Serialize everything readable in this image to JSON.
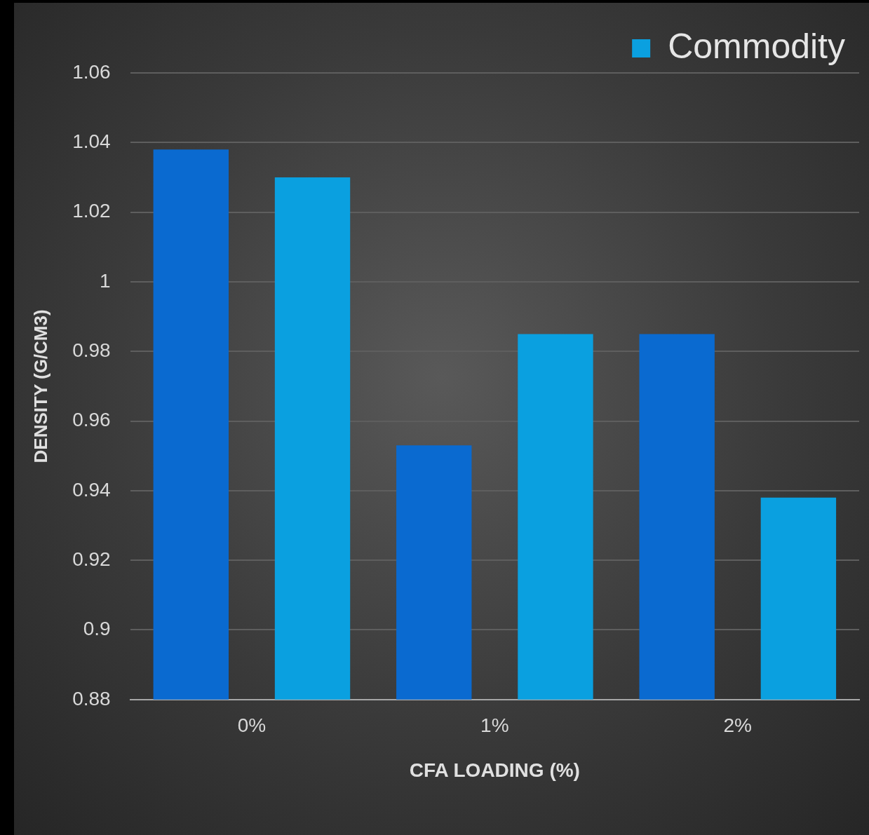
{
  "chart_data": {
    "type": "bar",
    "xlabel": "CFA LOADING (%)",
    "ylabel": "DENSITY (G/CM3)",
    "categories": [
      "0%",
      "1%",
      "2%"
    ],
    "series": [
      {
        "color": "#0a6ad0",
        "values": [
          1.038,
          0.953,
          0.985
        ]
      },
      {
        "name": "Commodity",
        "color": "#0aa0e0",
        "values": [
          1.03,
          0.985,
          0.938
        ]
      }
    ],
    "ylim": [
      0.88,
      1.06
    ],
    "yticks": [
      0.88,
      0.9,
      0.92,
      0.94,
      0.96,
      0.98,
      1,
      1.02,
      1.04,
      1.06
    ],
    "grid": "y",
    "legend": "top right"
  }
}
